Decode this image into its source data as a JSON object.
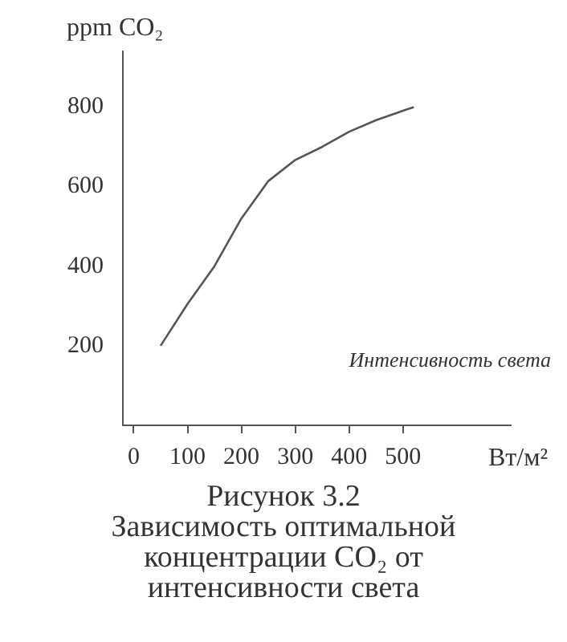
{
  "chart_data": {
    "type": "line",
    "title": "Рисунок 3.2",
    "subtitle": "Зависимость оптимальной концентрации CO₂ от интенсивности света",
    "xlabel": "Вт/м²",
    "ylabel": "ppm CO₂",
    "annotations": [
      "Интенсивность света"
    ],
    "x": [
      50,
      100,
      150,
      200,
      250,
      300,
      350,
      400,
      450,
      520
    ],
    "series": [
      {
        "color": "#555555",
        "values": [
          200,
          305,
          400,
          520,
          614,
          667,
          700,
          738,
          767,
          800
        ]
      }
    ],
    "xlim": [
      -20,
      700
    ],
    "xticks": [
      0,
      100,
      200,
      300,
      400,
      500
    ],
    "ylim": [
      0,
      940
    ],
    "yticks": [
      200,
      400,
      600,
      800
    ],
    "grid": false,
    "legend": false,
    "marker": "none",
    "line_style": "solid"
  }
}
